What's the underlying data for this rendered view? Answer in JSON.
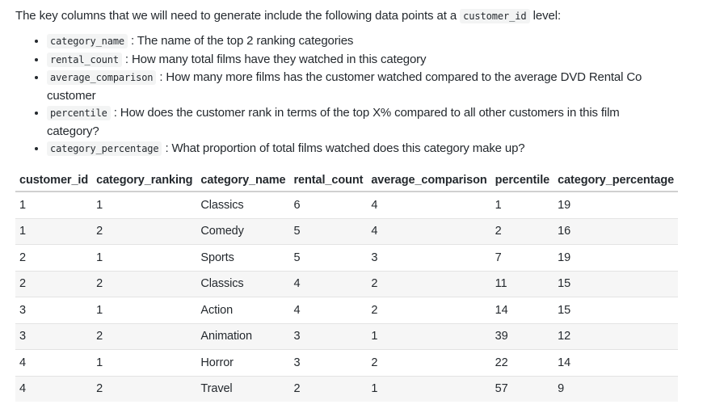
{
  "intro": {
    "prefix": "The key columns that we will need to generate include the following data points at a ",
    "code": "customer_id",
    "suffix": " level:"
  },
  "bullets": [
    {
      "code": "category_name",
      "text": " : The name of the top 2 ranking categories"
    },
    {
      "code": "rental_count",
      "text": " : How many total films have they watched in this category"
    },
    {
      "code": "average_comparison",
      "text": " : How many more films has the customer watched compared to the average DVD Rental Co customer"
    },
    {
      "code": "percentile",
      "text": " : How does the customer rank in terms of the top X% compared to all other customers in this film category?"
    },
    {
      "code": "category_percentage",
      "text": " : What proportion of total films watched does this category make up?"
    }
  ],
  "table": {
    "headers": [
      "customer_id",
      "category_ranking",
      "category_name",
      "rental_count",
      "average_comparison",
      "percentile",
      "category_percentage"
    ],
    "rows": [
      [
        "1",
        "1",
        "Classics",
        "6",
        "4",
        "1",
        "19"
      ],
      [
        "1",
        "2",
        "Comedy",
        "5",
        "4",
        "2",
        "16"
      ],
      [
        "2",
        "1",
        "Sports",
        "5",
        "3",
        "7",
        "19"
      ],
      [
        "2",
        "2",
        "Classics",
        "4",
        "2",
        "11",
        "15"
      ],
      [
        "3",
        "1",
        "Action",
        "4",
        "2",
        "14",
        "15"
      ],
      [
        "3",
        "2",
        "Animation",
        "3",
        "1",
        "39",
        "12"
      ],
      [
        "4",
        "1",
        "Horror",
        "3",
        "2",
        "22",
        "14"
      ],
      [
        "4",
        "2",
        "Travel",
        "2",
        "1",
        "57",
        "9"
      ]
    ]
  }
}
